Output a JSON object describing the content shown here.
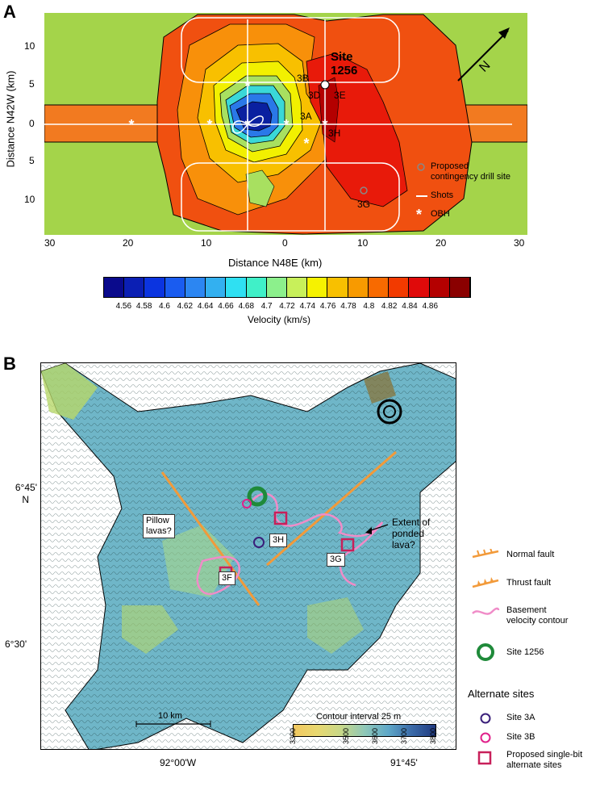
{
  "panel_a": {
    "letter": "A",
    "site_label": "Site\n1256",
    "site_line1": "Site",
    "site_line2": "1256",
    "north_label": "N",
    "site_labels": [
      "3B",
      "3D",
      "3E",
      "3A",
      "3H",
      "3G"
    ],
    "y_axis_title": "Distance N42W (km)",
    "x_axis_title": "Distance N48E (km)",
    "y_ticks": [
      "10",
      "5",
      "0",
      "5",
      "10"
    ],
    "x_ticks": [
      "30",
      "20",
      "10",
      "0",
      "10",
      "20",
      "30"
    ],
    "legend": {
      "contingency": "Proposed contingency drill site",
      "contingency_l1": "Proposed",
      "contingency_l2": "contingency drill site",
      "shots": "Shots",
      "obh": "OBH"
    },
    "colorbar": {
      "title": "Velocity (km/s)",
      "labels": [
        "4.56",
        "4.58",
        "4.6",
        "4.62",
        "4.64",
        "4.66",
        "4.68",
        "4.7",
        "4.72",
        "4.74",
        "4.76",
        "4.78",
        "4.8",
        "4.82",
        "4.84",
        "4.86"
      ],
      "colors": [
        "#0a0a8c",
        "#0b1fb4",
        "#0b34e0",
        "#1a5cf0",
        "#2c86f2",
        "#33b0f0",
        "#2fe0f2",
        "#40f0c8",
        "#8cf08c",
        "#c8f05a",
        "#f6f200",
        "#f8c000",
        "#f89a00",
        "#f86a00",
        "#f23a00",
        "#e00a0a",
        "#b40000",
        "#8a0000"
      ]
    }
  },
  "panel_b": {
    "letter": "B",
    "lat_ticks": [
      "6°45'\nN",
      "6°30'"
    ],
    "lat_tick_1": "6°45'",
    "lat_tick_1b": "N",
    "lat_tick_2": "6°30'",
    "lon_ticks": [
      "92°00'W",
      "91°45'"
    ],
    "annotations": {
      "pillow": "Pillow\nlavas?",
      "pillow_l1": "Pillow",
      "pillow_l2": "lavas?",
      "extent_l1": "Extent of",
      "extent_l2": "ponded",
      "extent_l3": "lava?",
      "site_3H": "3H",
      "site_3G": "3G",
      "site_3F": "3F"
    },
    "scale_bar": "10 km",
    "contour_interval": "Contour interval 25 m",
    "bathy_labels": [
      "3300",
      "3500",
      "3600",
      "3700",
      "3800"
    ],
    "legend": {
      "normal_fault": "Normal fault",
      "thrust_fault": "Thrust fault",
      "basement_l1": "Basement",
      "basement_l2": "velocity contour",
      "site_1256": "Site 1256",
      "alternate_title": "Alternate sites",
      "site_3a": "Site 3A",
      "site_3b": "Site 3B",
      "single_bit_l1": "Proposed single-bit",
      "single_bit_l2": "alternate sites"
    },
    "colors": {
      "fault": "#f29a3a",
      "basement_contour": "#f08cc8",
      "site_1256": "#1f8a3a",
      "site_3a": "#3a1f7a",
      "site_3b": "#e0208a",
      "single_bit": "#c8205a"
    }
  }
}
